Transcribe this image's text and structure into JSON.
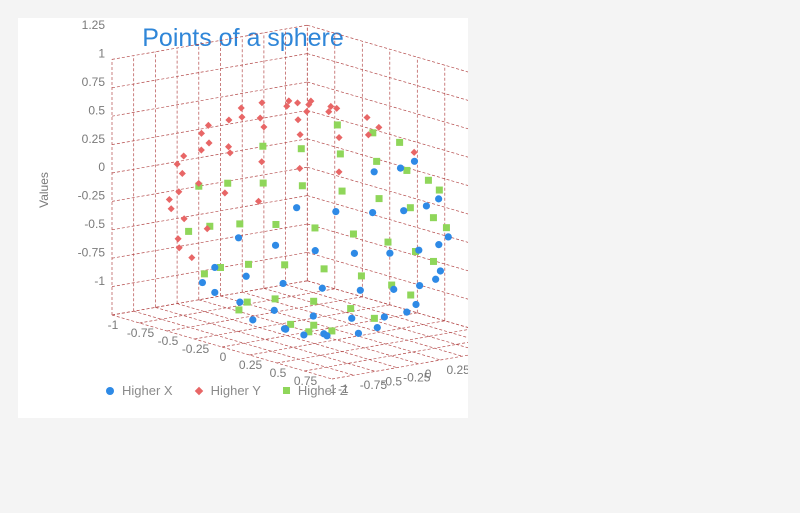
{
  "chart_data": {
    "type": "scatter",
    "title": "Points of a sphere",
    "ylabel": "Values",
    "y_ticks": [
      "-1",
      "-0.75",
      "-0.5",
      "-0.25",
      "0",
      "0.25",
      "0.5",
      "0.75",
      "1",
      "1.25"
    ],
    "x_ticks": [
      "-1",
      "-0.75",
      "-0.5",
      "-0.25",
      "0",
      "0.25",
      "0.5",
      "0.75",
      "1"
    ],
    "z_ticks": [
      "-1",
      "-0.75",
      "-0.5",
      "-0.25",
      "0",
      "0.25",
      "0.5",
      "0.75",
      "1",
      "1.25"
    ],
    "axis_range": {
      "x": [
        -1,
        1
      ],
      "y": [
        -1,
        1.25
      ],
      "z": [
        -1,
        1.25
      ]
    },
    "grid": true,
    "legend_position": "bottom",
    "series": [
      {
        "name": "Higher X",
        "color": "#2e8ae6",
        "marker": "circle",
        "rule": "x is the largest coordinate"
      },
      {
        "name": "Higher Y",
        "color": "#e86666",
        "marker": "diamond",
        "rule": "y is the largest coordinate"
      },
      {
        "name": "Higher Z",
        "color": "#8fd65a",
        "marker": "square",
        "rule": "z is the largest coordinate"
      }
    ]
  }
}
